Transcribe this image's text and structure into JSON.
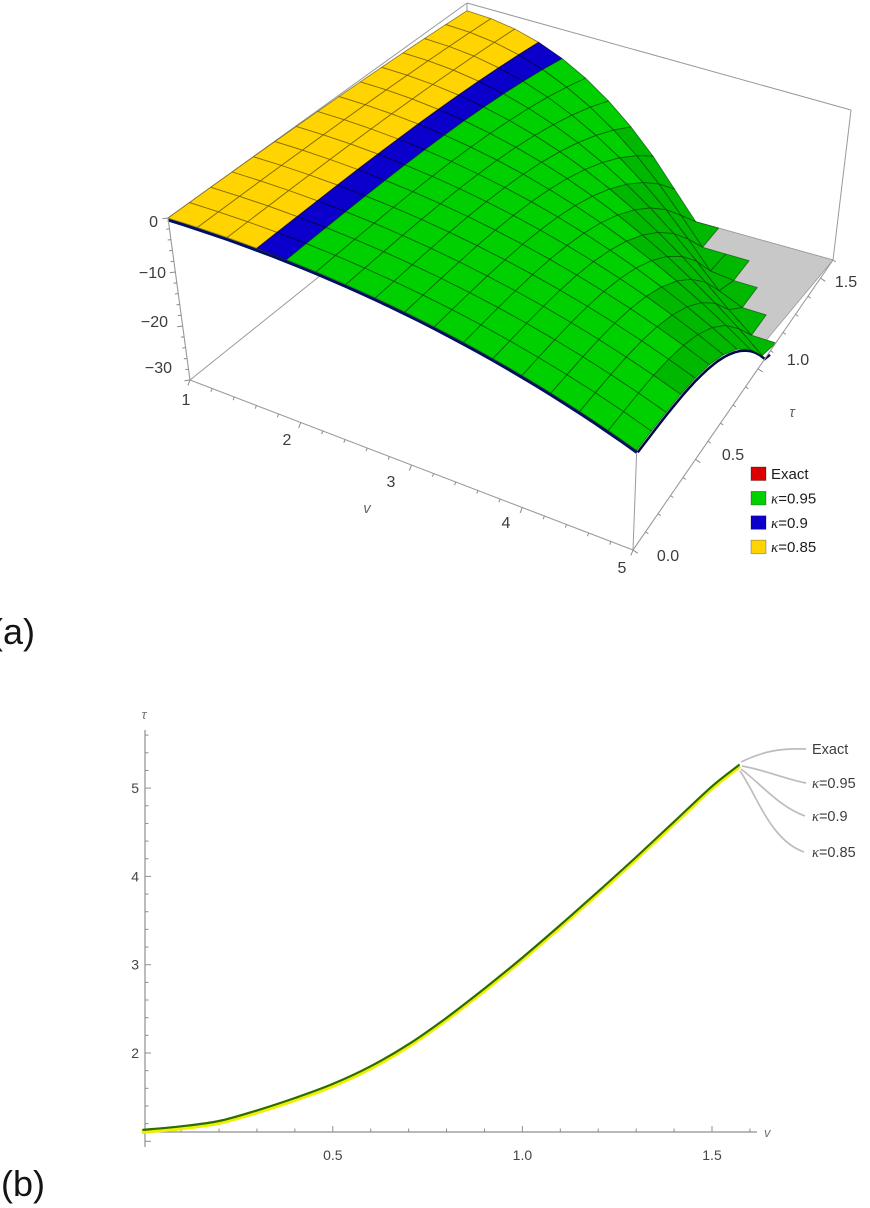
{
  "figure": {
    "panel_a_label": "(a)",
    "panel_b_label": "(b)",
    "colors": {
      "exact_red": "#dd0000",
      "k095_green": "#00cf00",
      "k09_blue": "#0b00cb",
      "k085_yellow": "#ffd400",
      "curve_top_green": "#2f6b00",
      "curve_under_yellow": "#edf000",
      "box_edge_gray": "#9a9a9a",
      "bottom_patch_gray": "#c8c8c8",
      "leader_gray": "#bdbdbd",
      "label_text": "#3c3c3c"
    },
    "plot3d": {
      "z_ticks": [
        "0",
        "−10",
        "−20",
        "−30"
      ],
      "v_ticks": [
        "1",
        "2",
        "3",
        "4",
        "5"
      ],
      "tau_ticks": [
        "0.0",
        "0.5",
        "1.0",
        "1.5"
      ],
      "v_axis_label": "v",
      "tau_axis_label": "τ",
      "legend": [
        {
          "label": "Exact",
          "color": "#dd0000"
        },
        {
          "label": "κ=0.95",
          "color": "#00cf00"
        },
        {
          "label": "κ=0.9",
          "color": "#0b00cb"
        },
        {
          "label": "κ=0.85",
          "color": "#ffd400"
        }
      ]
    },
    "plot2d": {
      "y_ticks": [
        "2",
        "3",
        "4",
        "5"
      ],
      "x_ticks": [
        "0.5",
        "1.0",
        "1.5"
      ],
      "y_axis_label": "τ",
      "x_axis_label": "v",
      "callouts": [
        "Exact",
        "κ=0.95",
        "κ=0.9",
        "κ=0.85"
      ]
    }
  },
  "chart_data": [
    {
      "id": "a",
      "type": "surface",
      "title": "",
      "xlabel": "v",
      "ylabel": "τ",
      "zlabel": "",
      "x_range": [
        1,
        5
      ],
      "y_range": [
        0,
        1.6
      ],
      "z_range": [
        -30,
        0
      ],
      "legend": [
        {
          "name": "Exact",
          "color": "#dd0000"
        },
        {
          "name": "κ=0.95",
          "color": "#00cf00"
        },
        {
          "name": "κ=0.9",
          "color": "#0b00cb"
        },
        {
          "name": "κ=0.85",
          "color": "#ffd400"
        }
      ],
      "note": "Four nearly identical surfaces overlap; the top (green, κ=0.95) covers the others except yellow and blue bands visible near the v=1 edge. Surface is ~0 over most of the domain and plunges below −30 (clipped, gray floor patch visible) toward v=5 at larger τ.",
      "v_samples": [
        1,
        2,
        3,
        4,
        5
      ],
      "tau_samples": [
        0,
        0.4,
        0.8,
        1.2,
        1.6
      ],
      "z_grid": [
        [
          0,
          0,
          -0.2,
          -0.6,
          -1.5
        ],
        [
          -1,
          -1.1,
          -1.5,
          -2.8,
          -5.6
        ],
        [
          -3.8,
          -4.0,
          -5.2,
          -9.7,
          -19.6
        ],
        [
          -8.1,
          -8.5,
          -11.4,
          -21.3,
          null
        ],
        [
          -14.1,
          -14.6,
          -20.1,
          null,
          null
        ]
      ]
    },
    {
      "id": "b",
      "type": "line",
      "title": "",
      "xlabel": "v",
      "ylabel": "τ",
      "x_range": [
        0,
        1.62
      ],
      "y_range": [
        1.05,
        5.65
      ],
      "x": [
        0,
        0.1,
        0.2,
        0.3,
        0.4,
        0.5,
        0.6,
        0.7,
        0.8,
        0.9,
        1.0,
        1.1,
        1.2,
        1.3,
        1.4,
        1.5,
        1.5708
      ],
      "y_shared": [
        1.13,
        1.17,
        1.23,
        1.35,
        1.49,
        1.65,
        1.85,
        2.1,
        2.4,
        2.73,
        3.08,
        3.45,
        3.83,
        4.22,
        4.62,
        5.02,
        5.26
      ],
      "series": [
        {
          "name": "Exact",
          "color": "#dd0000"
        },
        {
          "name": "κ=0.95",
          "color": "#2f6b00"
        },
        {
          "name": "κ=0.9",
          "color": "#0b00cb"
        },
        {
          "name": "κ=0.85",
          "color": "#edf000"
        }
      ],
      "note": "All four curves overlap visually (dark green on top, yellow underneath); callout leaders point to the common curve endpoint."
    }
  ]
}
